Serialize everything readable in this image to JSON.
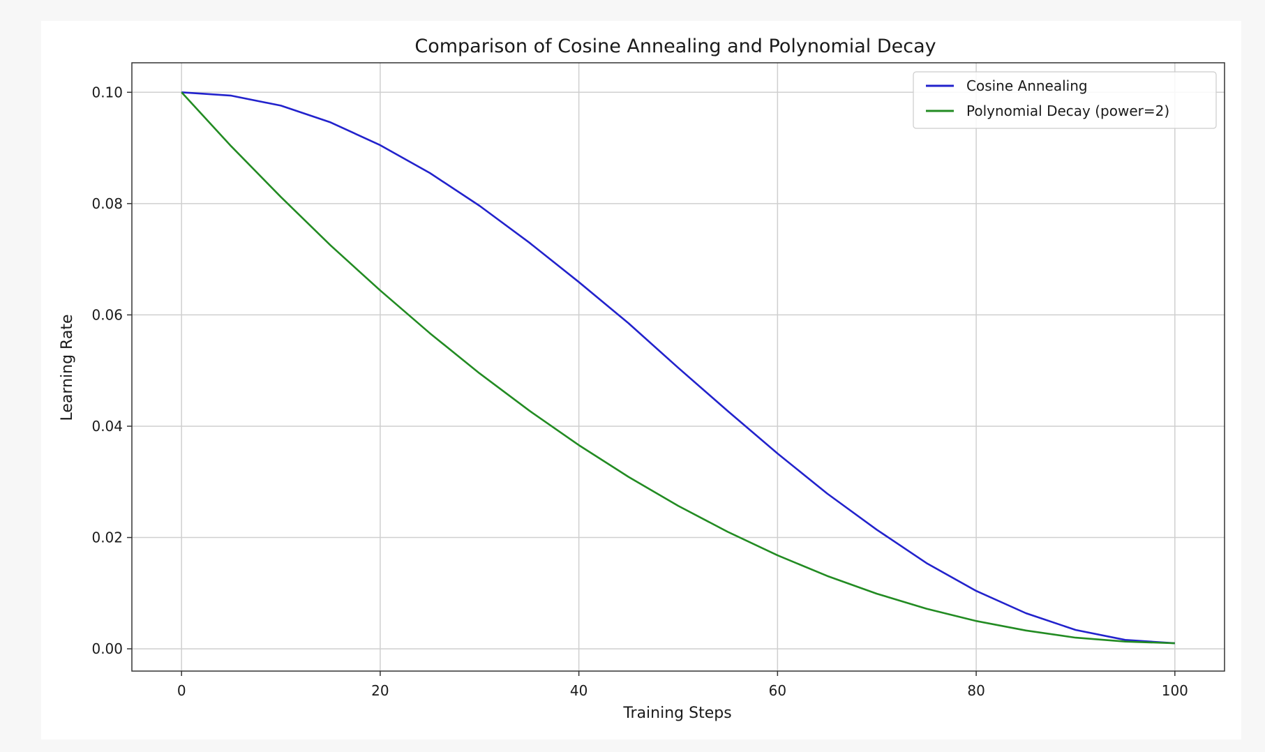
{
  "chart_data": {
    "type": "line",
    "title": "Comparison of Cosine Annealing and Polynomial Decay",
    "xlabel": "Training Steps",
    "ylabel": "Learning Rate",
    "xlim": [
      -5,
      105
    ],
    "ylim": [
      -0.004,
      0.1053
    ],
    "x_ticks": [
      0,
      20,
      40,
      60,
      80,
      100
    ],
    "x_tick_labels": [
      "0",
      "20",
      "40",
      "60",
      "80",
      "100"
    ],
    "y_ticks": [
      0.0,
      0.02,
      0.04,
      0.06,
      0.08,
      0.1
    ],
    "y_tick_labels": [
      "0.00",
      "0.02",
      "0.04",
      "0.06",
      "0.08",
      "0.10"
    ],
    "grid": true,
    "legend_position": "top-right",
    "x": [
      0,
      5,
      10,
      15,
      20,
      25,
      30,
      35,
      40,
      45,
      50,
      55,
      60,
      65,
      70,
      75,
      80,
      85,
      90,
      95,
      100
    ],
    "series": [
      {
        "name": "Cosine Annealing",
        "color": "#2222cc",
        "values": [
          0.1,
          0.0994,
          0.0976,
          0.0946,
          0.0905,
          0.0855,
          0.0796,
          0.073,
          0.0659,
          0.0585,
          0.0505,
          0.0427,
          0.0351,
          0.0279,
          0.0214,
          0.0154,
          0.0104,
          0.0064,
          0.0034,
          0.0016,
          0.001
        ]
      },
      {
        "name": "Polynomial Decay (power=2)",
        "color": "#228b22",
        "values": [
          0.1,
          0.0903,
          0.0812,
          0.0725,
          0.0644,
          0.0567,
          0.0495,
          0.0428,
          0.0366,
          0.0309,
          0.0257,
          0.021,
          0.0168,
          0.0131,
          0.0099,
          0.0072,
          0.005,
          0.0033,
          0.002,
          0.0013,
          0.001
        ]
      }
    ]
  }
}
